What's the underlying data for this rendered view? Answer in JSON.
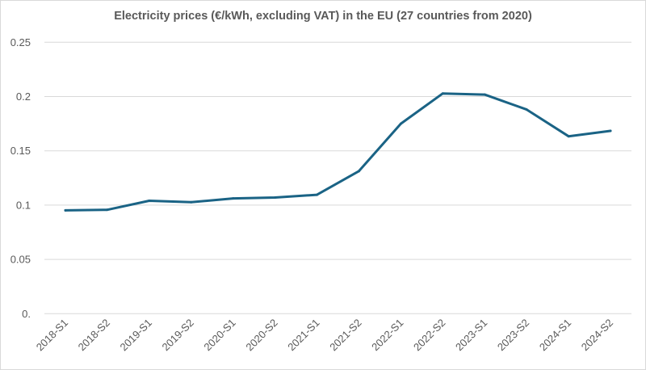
{
  "chart_data": {
    "type": "line",
    "title": "Electricity prices (€/kWh, excluding VAT) in the EU (27 countries from 2020)",
    "xlabel": "",
    "ylabel": "",
    "categories": [
      "2018-S1",
      "2018-S2",
      "2019-S1",
      "2019-S2",
      "2020-S1",
      "2020-S2",
      "2021-S1",
      "2021-S2",
      "2022-S1",
      "2022-S2",
      "2023-S1",
      "2023-S2",
      "2024-S1",
      "2024-S2"
    ],
    "series": [
      {
        "values": [
          0.0952,
          0.0957,
          0.104,
          0.1027,
          0.1062,
          0.107,
          0.1095,
          0.1313,
          0.175,
          0.2028,
          0.2018,
          0.188,
          0.1634,
          0.1684
        ],
        "color": "#1a6385"
      }
    ],
    "ylim": [
      0,
      0.25
    ],
    "yticks": [
      0,
      0.05,
      0.1,
      0.15,
      0.2,
      0.25
    ],
    "ytick_labels": [
      "0.",
      "0.05",
      "0.1",
      "0.15",
      "0.2",
      "0.25"
    ],
    "grid": true,
    "legend": "none"
  }
}
